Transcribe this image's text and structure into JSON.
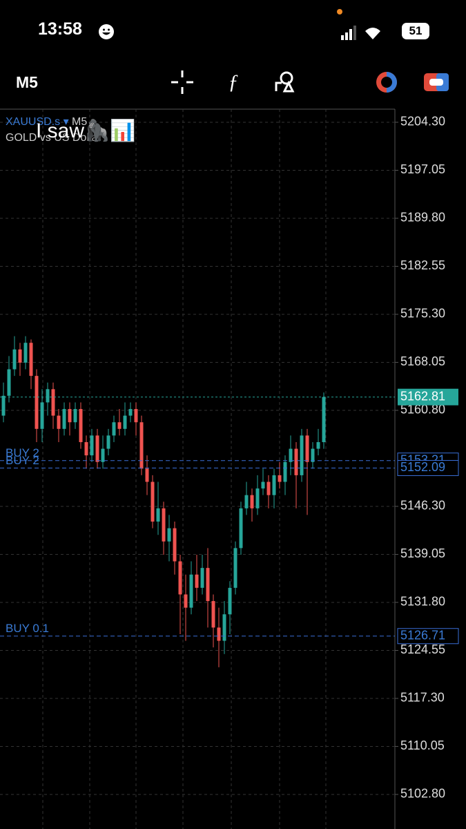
{
  "status_bar": {
    "time": "13:58",
    "battery": "51"
  },
  "toolbar": {
    "timeframe": "M5"
  },
  "chart_data": {
    "type": "candlestick",
    "symbol": "XAUUSD.s",
    "timeframe": "M5",
    "description": "GOLD vs US Dollar",
    "overlay_text": "I saw🦍📊",
    "open": [
      5160,
      5163,
      5167,
      5170,
      5168,
      5171,
      5166,
      5158,
      5162,
      5164,
      5160,
      5158,
      5161,
      5159,
      5161,
      5156,
      5154,
      5157,
      5153,
      5155,
      5157,
      5159,
      5158,
      5160,
      5161,
      5159,
      5152,
      5150,
      5144,
      5146,
      5141,
      5143,
      5138,
      5133,
      5131,
      5136,
      5134,
      5137,
      5132,
      5128,
      5126,
      5130,
      5134,
      5140,
      5146,
      5148,
      5146,
      5149,
      5150,
      5148,
      5151,
      5150,
      5153,
      5155,
      5151,
      5157,
      5153,
      5155,
      5156
    ],
    "high": [
      5165,
      5169,
      5172,
      5171,
      5172,
      5171.5,
      5167,
      5164,
      5165,
      5165,
      5161,
      5162,
      5162,
      5162,
      5162,
      5157,
      5158,
      5158,
      5157,
      5158,
      5160,
      5161,
      5162,
      5162,
      5162,
      5160,
      5154,
      5151,
      5150,
      5147,
      5145,
      5144,
      5139,
      5136,
      5138,
      5139,
      5139,
      5140,
      5133,
      5131,
      5132,
      5135,
      5141,
      5147,
      5150,
      5149,
      5151,
      5152,
      5151,
      5152,
      5153,
      5154,
      5157,
      5156,
      5158,
      5158,
      5156,
      5158,
      5163.5
    ],
    "low": [
      5159,
      5162,
      5166,
      5166,
      5167,
      5164,
      5156,
      5156,
      5160,
      5158,
      5156,
      5157,
      5157,
      5158,
      5155,
      5152,
      5153,
      5152,
      5152,
      5154,
      5156,
      5157,
      5157,
      5159,
      5157,
      5151,
      5148,
      5143,
      5142,
      5139,
      5138,
      5136,
      5127,
      5126,
      5130,
      5132,
      5133,
      5128,
      5125,
      5122,
      5124,
      5127,
      5133,
      5139,
      5145,
      5144,
      5145,
      5148,
      5146,
      5146,
      5149,
      5148,
      5151,
      5146,
      5150,
      5145,
      5152,
      5154,
      5155
    ],
    "close": [
      5163,
      5167,
      5170,
      5168,
      5171,
      5166,
      5158,
      5162,
      5164,
      5160,
      5158,
      5161,
      5159,
      5161,
      5156,
      5154,
      5157,
      5153,
      5155,
      5157,
      5159,
      5158,
      5160,
      5161,
      5159,
      5152,
      5150,
      5144,
      5146,
      5141,
      5143,
      5138,
      5133,
      5131,
      5136,
      5134,
      5137,
      5132,
      5128,
      5126,
      5130,
      5134,
      5140,
      5146,
      5148,
      5146,
      5149,
      5150,
      5148,
      5151,
      5150,
      5153,
      5155,
      5151,
      5157,
      5153,
      5155,
      5156,
      5162.81
    ],
    "up_color": "#26a69a",
    "down_color": "#ef5350",
    "ylim": [
      5097.58,
      5206.28
    ],
    "yticks": [
      {
        "value": 5204.3,
        "label": "5204.30"
      },
      5197.05,
      {
        "value": 5189.8,
        "label": "5189.80"
      },
      5182.55,
      {
        "value": 5175.3,
        "label": "5175.30"
      },
      5168.05,
      {
        "value": 5160.8,
        "label": "5160.80"
      },
      {
        "value": 5146.3,
        "label": "5146.30"
      },
      5139.05,
      {
        "value": 5131.8,
        "label": "5131.80"
      },
      5124.55,
      {
        "value": 5117.3,
        "label": "5117.30"
      },
      5110.05,
      {
        "value": 5102.8,
        "label": "5102.80"
      }
    ],
    "current_price": 5162.81,
    "price_lines": [
      {
        "label": "BUY 2",
        "value": 5153.21
      },
      {
        "label": "BUY 2",
        "value": 5152.09
      },
      {
        "label": "BUY 0.1",
        "value": 5126.71
      }
    ],
    "grid": true
  }
}
